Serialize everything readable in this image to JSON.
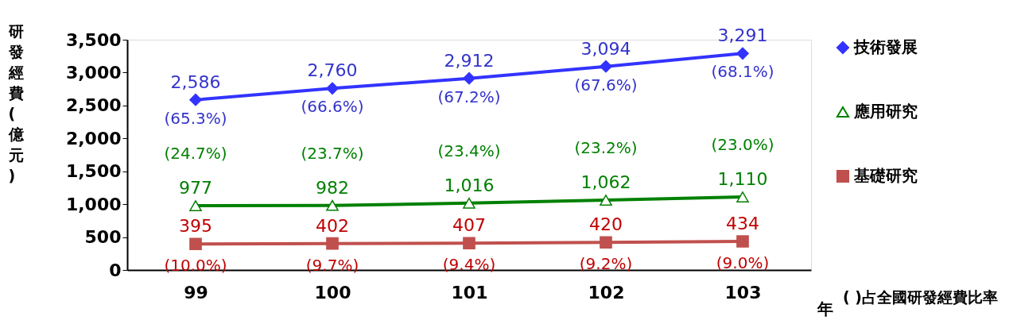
{
  "chart_data": {
    "type": "line",
    "ylabel": "研發經費(億元)",
    "xlabel": "年",
    "categories": [
      "99",
      "100",
      "101",
      "102",
      "103"
    ],
    "series": [
      {
        "name": "技術發展",
        "color": "#3333ff",
        "marker": "diamond",
        "values": [
          2586,
          2760,
          2912,
          3094,
          3291
        ],
        "value_labels": [
          "2,586",
          "2,760",
          "2,912",
          "3,094",
          "3,291"
        ]
      },
      {
        "name": "應用研究",
        "color": "#008000",
        "marker": "triangle",
        "values": [
          977,
          982,
          1016,
          1062,
          1110
        ],
        "value_labels": [
          "977",
          "982",
          "1,016",
          "1,062",
          "1,110"
        ]
      },
      {
        "name": "基礎研究",
        "color": "#c0504d",
        "marker": "square",
        "values": [
          395,
          402,
          407,
          420,
          434
        ],
        "value_labels": [
          "395",
          "402",
          "407",
          "420",
          "434"
        ]
      }
    ],
    "ylim": [
      0,
      3500
    ],
    "yticks": [
      0,
      500,
      {
        "value": 1000,
        "label": "1,000"
      },
      {
        "value": 1500,
        "label": "1,500"
      },
      {
        "value": 2000,
        "label": "2,000"
      },
      {
        "value": 2500,
        "label": "2,500"
      },
      {
        "value": 3000,
        "label": "3,000"
      },
      {
        "value": 3500,
        "label": "3,500"
      }
    ],
    "grid": false,
    "legend": "right",
    "line_style": "solid",
    "annotations": [
      {
        "text": "(65.3%)",
        "x": "99",
        "y": 2586
      },
      {
        "text": "(66.6%)",
        "x": "100",
        "y": 2760
      },
      {
        "text": "(67.2%)",
        "x": "101",
        "y": 2912
      },
      {
        "text": "(67.6%)",
        "x": "102",
        "y": 3094
      },
      {
        "text": "(68.1%)",
        "x": "103",
        "y": 3291
      },
      {
        "text": "(24.7%)",
        "x": "99",
        "y": 977
      },
      {
        "text": "(23.7%)",
        "x": "100",
        "y": 982
      },
      {
        "text": "(23.4%)",
        "x": "101",
        "y": 1016
      },
      {
        "text": "(23.2%)",
        "x": "102",
        "y": 1062
      },
      {
        "text": "(23.0%)",
        "x": "103",
        "y": 1110
      },
      {
        "text": "(10.0%)",
        "x": "99",
        "y": 395
      },
      {
        "text": "(9.7%)",
        "x": "100",
        "y": 402
      },
      {
        "text": "(9.4%)",
        "x": "101",
        "y": 407
      },
      {
        "text": "(9.2%)",
        "x": "102",
        "y": 420
      },
      {
        "text": "(9.0%)",
        "x": "103",
        "y": 434
      },
      "( )占全國研發經費比率"
    ]
  }
}
